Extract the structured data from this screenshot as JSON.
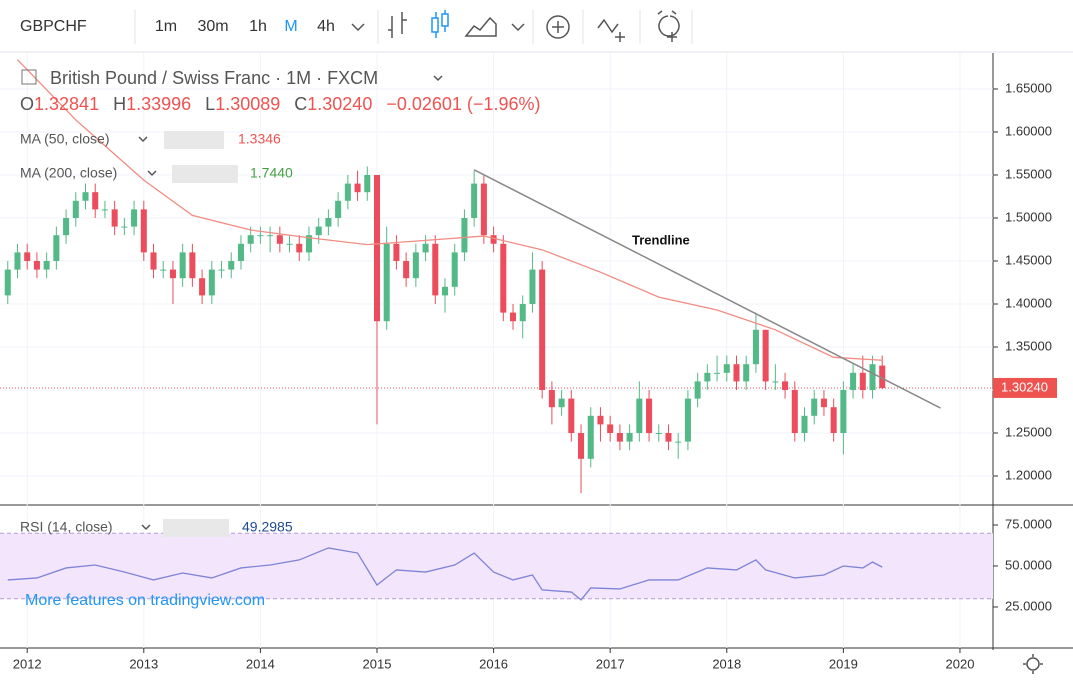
{
  "toolbar": {
    "symbol": "GBPCHF",
    "intervals": [
      "1m",
      "30m",
      "1h",
      "M",
      "4h"
    ],
    "active_interval": 3
  },
  "header": {
    "title": "British Pound / Swiss Franc · 1M · FXCM",
    "ohlc": [
      {
        "label": "O",
        "value": "1.32841"
      },
      {
        "label": "H",
        "value": "1.33996"
      },
      {
        "label": "L",
        "value": "1.30089"
      },
      {
        "label": "C",
        "value": "1.30240"
      }
    ],
    "change": "−0.02601 (−1.96%)",
    "indicators": [
      {
        "name": "MA (50, close)",
        "value": "1.3346",
        "color": "#ef5350"
      },
      {
        "name": "MA (200, close)",
        "value": "1.7440",
        "color": "#43a047"
      }
    ],
    "rsi_name": "RSI (14, close)",
    "rsi_value": "49.2985",
    "promo": "More features on tradingview.com"
  },
  "chart_data": {
    "type": "candlestick",
    "up_color": "#53b987",
    "down_color": "#eb4d5c",
    "ylim": [
      1.1663,
      1.6895
    ],
    "yticks": [
      {
        "value": 1.65,
        "label": "1.65000"
      },
      {
        "value": 1.6,
        "label": "1.60000"
      },
      {
        "value": 1.55,
        "label": "1.55000"
      },
      {
        "value": 1.5,
        "label": "1.50000"
      },
      {
        "value": 1.45,
        "label": "1.45000"
      },
      {
        "value": 1.4,
        "label": "1.40000"
      },
      {
        "value": 1.35,
        "label": "1.35000"
      },
      {
        "value": 1.3,
        "label": "1.30000"
      },
      {
        "value": 1.25,
        "label": "1.25000"
      },
      {
        "value": 1.2,
        "label": "1.20000"
      }
    ],
    "xlim": [
      -0.8,
      101.4
    ],
    "xticks": [
      {
        "value": 2,
        "label": "2012"
      },
      {
        "value": 14,
        "label": "2013"
      },
      {
        "value": 26,
        "label": "2014"
      },
      {
        "value": 38,
        "label": "2015"
      },
      {
        "value": 50,
        "label": "2016"
      },
      {
        "value": 62,
        "label": "2017"
      },
      {
        "value": 74,
        "label": "2018"
      },
      {
        "value": 86,
        "label": "2019"
      },
      {
        "value": 98,
        "label": "2020"
      }
    ],
    "candles": [
      [
        1.41,
        1.45,
        1.4,
        1.44
      ],
      [
        1.44,
        1.47,
        1.43,
        1.46
      ],
      [
        1.46,
        1.47,
        1.44,
        1.45
      ],
      [
        1.45,
        1.46,
        1.43,
        1.44
      ],
      [
        1.44,
        1.46,
        1.43,
        1.45
      ],
      [
        1.45,
        1.49,
        1.44,
        1.48
      ],
      [
        1.48,
        1.51,
        1.47,
        1.5
      ],
      [
        1.5,
        1.53,
        1.49,
        1.52
      ],
      [
        1.52,
        1.54,
        1.51,
        1.53
      ],
      [
        1.53,
        1.54,
        1.5,
        1.51
      ],
      [
        1.51,
        1.52,
        1.5,
        1.51
      ],
      [
        1.51,
        1.52,
        1.48,
        1.49
      ],
      [
        1.49,
        1.5,
        1.48,
        1.49
      ],
      [
        1.49,
        1.52,
        1.48,
        1.51
      ],
      [
        1.51,
        1.52,
        1.45,
        1.46
      ],
      [
        1.46,
        1.47,
        1.43,
        1.44
      ],
      [
        1.44,
        1.45,
        1.43,
        1.44
      ],
      [
        1.44,
        1.45,
        1.4,
        1.43
      ],
      [
        1.43,
        1.47,
        1.42,
        1.46
      ],
      [
        1.46,
        1.47,
        1.42,
        1.43
      ],
      [
        1.43,
        1.44,
        1.4,
        1.41
      ],
      [
        1.41,
        1.45,
        1.4,
        1.44
      ],
      [
        1.44,
        1.45,
        1.43,
        1.44
      ],
      [
        1.44,
        1.46,
        1.43,
        1.45
      ],
      [
        1.45,
        1.48,
        1.44,
        1.47
      ],
      [
        1.47,
        1.49,
        1.46,
        1.48
      ],
      [
        1.48,
        1.49,
        1.47,
        1.48
      ],
      [
        1.48,
        1.49,
        1.46,
        1.48
      ],
      [
        1.48,
        1.49,
        1.46,
        1.47
      ],
      [
        1.47,
        1.48,
        1.46,
        1.47
      ],
      [
        1.47,
        1.48,
        1.45,
        1.46
      ],
      [
        1.46,
        1.49,
        1.45,
        1.48
      ],
      [
        1.48,
        1.5,
        1.47,
        1.49
      ],
      [
        1.49,
        1.51,
        1.48,
        1.5
      ],
      [
        1.5,
        1.53,
        1.49,
        1.52
      ],
      [
        1.52,
        1.55,
        1.51,
        1.54
      ],
      [
        1.54,
        1.555,
        1.52,
        1.53
      ],
      [
        1.53,
        1.56,
        1.52,
        1.55
      ],
      [
        1.55,
        1.55,
        1.26,
        1.38
      ],
      [
        1.38,
        1.49,
        1.37,
        1.47
      ],
      [
        1.47,
        1.48,
        1.44,
        1.45
      ],
      [
        1.45,
        1.46,
        1.42,
        1.43
      ],
      [
        1.43,
        1.47,
        1.42,
        1.46
      ],
      [
        1.46,
        1.48,
        1.45,
        1.47
      ],
      [
        1.47,
        1.48,
        1.4,
        1.41
      ],
      [
        1.41,
        1.43,
        1.39,
        1.42
      ],
      [
        1.42,
        1.47,
        1.41,
        1.46
      ],
      [
        1.46,
        1.51,
        1.45,
        1.5
      ],
      [
        1.5,
        1.555,
        1.49,
        1.54
      ],
      [
        1.54,
        1.55,
        1.47,
        1.48
      ],
      [
        1.48,
        1.49,
        1.46,
        1.47
      ],
      [
        1.47,
        1.48,
        1.38,
        1.39
      ],
      [
        1.39,
        1.4,
        1.37,
        1.38
      ],
      [
        1.38,
        1.41,
        1.36,
        1.4
      ],
      [
        1.4,
        1.46,
        1.39,
        1.44
      ],
      [
        1.44,
        1.45,
        1.29,
        1.3
      ],
      [
        1.3,
        1.31,
        1.26,
        1.28
      ],
      [
        1.28,
        1.3,
        1.27,
        1.29
      ],
      [
        1.29,
        1.3,
        1.24,
        1.25
      ],
      [
        1.25,
        1.26,
        1.18,
        1.22
      ],
      [
        1.22,
        1.28,
        1.21,
        1.27
      ],
      [
        1.27,
        1.28,
        1.24,
        1.26
      ],
      [
        1.26,
        1.27,
        1.24,
        1.25
      ],
      [
        1.25,
        1.26,
        1.23,
        1.24
      ],
      [
        1.24,
        1.26,
        1.23,
        1.25
      ],
      [
        1.25,
        1.31,
        1.24,
        1.29
      ],
      [
        1.29,
        1.3,
        1.24,
        1.25
      ],
      [
        1.25,
        1.26,
        1.24,
        1.25
      ],
      [
        1.25,
        1.26,
        1.23,
        1.24
      ],
      [
        1.24,
        1.25,
        1.22,
        1.24
      ],
      [
        1.24,
        1.3,
        1.23,
        1.29
      ],
      [
        1.29,
        1.32,
        1.28,
        1.31
      ],
      [
        1.31,
        1.33,
        1.3,
        1.32
      ],
      [
        1.32,
        1.34,
        1.31,
        1.32
      ],
      [
        1.32,
        1.34,
        1.31,
        1.33
      ],
      [
        1.33,
        1.34,
        1.3,
        1.31
      ],
      [
        1.31,
        1.34,
        1.3,
        1.33
      ],
      [
        1.33,
        1.39,
        1.32,
        1.37
      ],
      [
        1.37,
        1.37,
        1.3,
        1.31
      ],
      [
        1.31,
        1.33,
        1.3,
        1.31
      ],
      [
        1.31,
        1.32,
        1.29,
        1.3
      ],
      [
        1.3,
        1.31,
        1.24,
        1.25
      ],
      [
        1.25,
        1.28,
        1.24,
        1.27
      ],
      [
        1.27,
        1.3,
        1.26,
        1.29
      ],
      [
        1.29,
        1.3,
        1.27,
        1.28
      ],
      [
        1.28,
        1.29,
        1.24,
        1.25
      ],
      [
        1.25,
        1.31,
        1.225,
        1.3
      ],
      [
        1.3,
        1.33,
        1.29,
        1.32
      ],
      [
        1.32,
        1.34,
        1.29,
        1.3
      ],
      [
        1.3,
        1.34,
        1.29,
        1.33
      ],
      [
        1.32841,
        1.33996,
        1.30089,
        1.3024
      ]
    ],
    "ma50": {
      "color": "#f28b82",
      "x": [
        1,
        7,
        14,
        19,
        25,
        31,
        37,
        43,
        49,
        55,
        61,
        67,
        73,
        79,
        85,
        90
      ],
      "values": [
        1.684,
        1.614,
        1.544,
        1.503,
        1.486,
        1.477,
        1.469,
        1.474,
        1.479,
        1.463,
        1.437,
        1.408,
        1.393,
        1.37,
        1.338,
        1.3346
      ]
    },
    "trendline": {
      "label": "Trendline",
      "color": "#8a8a8a",
      "x": [
        48,
        96
      ],
      "values": [
        1.556,
        1.279
      ]
    },
    "last_price": {
      "value": 1.3024,
      "label": "1.30240",
      "color": "#ef5350"
    },
    "rsi": {
      "color": "#7e84d6",
      "ylim": [
        1.8,
        87.2
      ],
      "band": [
        30,
        70
      ],
      "yticks": [
        {
          "value": 75,
          "label": "75.0000"
        },
        {
          "value": 50,
          "label": "50.0000"
        },
        {
          "value": 25,
          "label": "25.0000"
        }
      ],
      "x": [
        0,
        3,
        6,
        9,
        12,
        15,
        18,
        21,
        24,
        27,
        30,
        33,
        36,
        38,
        40,
        43,
        46,
        48,
        50,
        52,
        54,
        55,
        58,
        59,
        60,
        63,
        66,
        69,
        72,
        75,
        77,
        78,
        81,
        84,
        86,
        88,
        89,
        90
      ],
      "values": [
        41.5,
        42.7,
        48.8,
        50.6,
        46.3,
        41.5,
        45.7,
        42.7,
        48.8,
        50.6,
        53.7,
        61,
        57.9,
        38.4,
        47.6,
        46.3,
        50.6,
        57.9,
        46.3,
        41.5,
        44.5,
        35.4,
        34.1,
        29.3,
        36.6,
        36,
        41.5,
        41.5,
        48.8,
        47.6,
        53.7,
        47.6,
        42.7,
        44.5,
        50,
        48.8,
        52.4,
        49.3
      ]
    }
  }
}
